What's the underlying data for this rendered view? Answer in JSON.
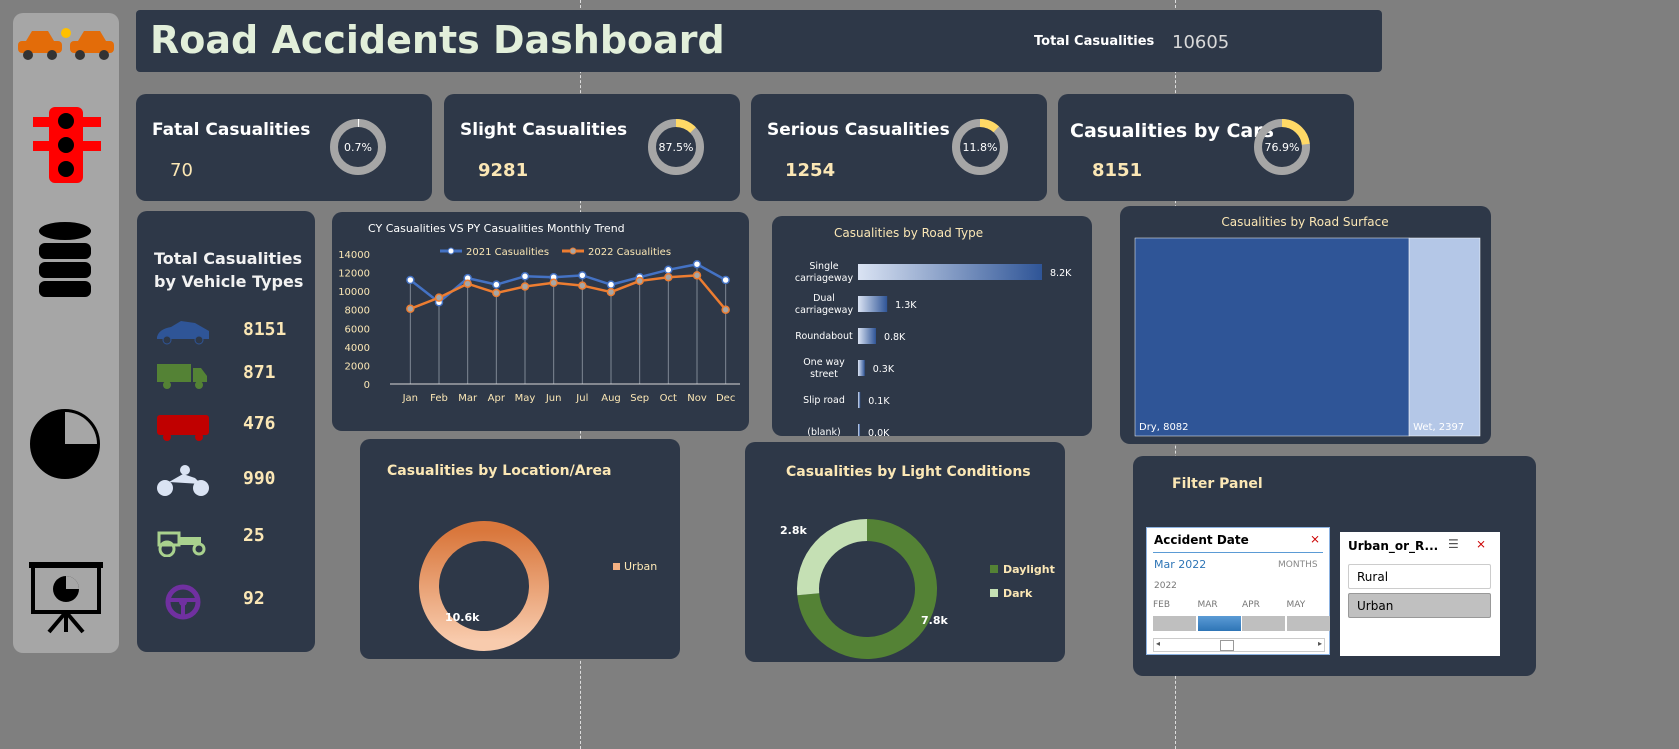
{
  "header": {
    "title": "Road Accidents Dashboard",
    "total_label": "Total Casualities",
    "total_value": "10605"
  },
  "sidebar": {
    "icons": [
      "car-crash-icon",
      "traffic-light-icon",
      "database-icon",
      "pie-chart-icon",
      "presentation-icon"
    ]
  },
  "kpis": [
    {
      "title": "Fatal Casualities",
      "value": "70",
      "pct": "0.7%",
      "fraction": 0.007
    },
    {
      "title": "Slight Casualities",
      "value": "9281",
      "pct": "87.5%",
      "fraction": 0.875
    },
    {
      "title": "Serious  Casualities",
      "value": "1254",
      "pct": "11.8%",
      "fraction": 0.118
    },
    {
      "title": "Casualities by Cars",
      "value": "8151",
      "pct": "76.9%",
      "fraction": 0.769
    }
  ],
  "vehicles": {
    "title1": "Total Casualities",
    "title2": "by Vehicle Types",
    "items": [
      {
        "icon": "car-icon",
        "value": "8151",
        "color": "#2f5597"
      },
      {
        "icon": "truck-icon",
        "value": "871",
        "color": "#548235"
      },
      {
        "icon": "bus-icon",
        "value": "476",
        "color": "#c00000"
      },
      {
        "icon": "motorcycle-icon",
        "value": "990",
        "color": "#dae3f3"
      },
      {
        "icon": "tractor-icon",
        "value": "25",
        "color": "#a9d18e"
      },
      {
        "icon": "steering-wheel-icon",
        "value": "92",
        "color": "#7030a0"
      }
    ]
  },
  "chart_data": [
    {
      "type": "line",
      "title": "CY Casualities VS  PY Casualities Monthly Trend",
      "categories": [
        "Jan",
        "Feb",
        "Mar",
        "Apr",
        "May",
        "Jun",
        "Jul",
        "Aug",
        "Sep",
        "Oct",
        "Nov",
        "Dec"
      ],
      "ylim": [
        0,
        14000
      ],
      "yticks": [
        "0",
        "2000",
        "4000",
        "6000",
        "8000",
        "10000",
        "12000",
        "14000"
      ],
      "legend": "top",
      "series": [
        {
          "name": "2021 Casualities",
          "color": "#4472c4",
          "values": [
            11200,
            8800,
            11400,
            10700,
            11600,
            11500,
            11700,
            10700,
            11500,
            12300,
            12900,
            11200
          ]
        },
        {
          "name": "2022 Casualities",
          "color": "#ed7d31",
          "values": [
            8100,
            9300,
            10800,
            9800,
            10500,
            10900,
            10600,
            9900,
            11100,
            11500,
            11700,
            8000
          ]
        }
      ]
    },
    {
      "type": "bar",
      "title": "Casualities by Road Type",
      "categories": [
        "Single carriageway",
        "Dual carriageway",
        "Roundabout",
        "One way street",
        "Slip road",
        "(blank)"
      ],
      "labels": [
        "8.2K",
        "1.3K",
        "0.8K",
        "0.3K",
        "0.1K",
        "0.0K"
      ],
      "values": [
        8200,
        1300,
        800,
        300,
        100,
        0
      ]
    },
    {
      "type": "treemap",
      "title": "Casualities by Road Surface",
      "categories": [
        "Dry",
        "Wet"
      ],
      "values": [
        8082,
        2397
      ],
      "labels": [
        "Dry, 8082",
        "Wet, 2397"
      ],
      "colors": [
        "#2f5597",
        "#b4c7e7"
      ]
    },
    {
      "type": "pie",
      "title": "Casualities by Location/Area",
      "categories": [
        "Urban"
      ],
      "values": [
        10.6
      ],
      "labels": [
        "10.6k"
      ],
      "legend": "right"
    },
    {
      "type": "pie",
      "title": "Casualities by Light Conditions",
      "categories": [
        "Daylight",
        "Dark"
      ],
      "values": [
        7.8,
        2.8
      ],
      "labels": [
        "7.8k",
        "2.8k"
      ],
      "colors": [
        "#548235",
        "#c5e0b4"
      ],
      "legend": "right"
    }
  ],
  "filter": {
    "title": "Filter Panel",
    "date": {
      "header": "Accident Date",
      "selected": "Mar 2022",
      "mode": "MONTHS",
      "year": "2022",
      "months": [
        "FEB",
        "MAR",
        "APR",
        "MAY"
      ]
    },
    "area": {
      "header": "Urban_or_R...",
      "options": [
        "Rural",
        "Urban"
      ]
    }
  }
}
